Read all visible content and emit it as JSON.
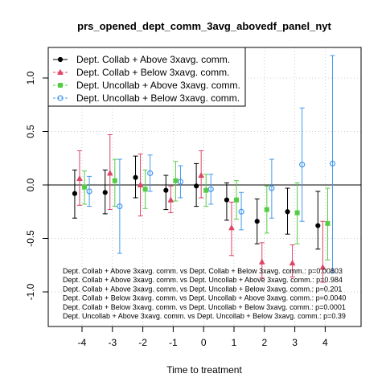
{
  "chart_data": {
    "type": "scatter",
    "title": "prs_opened_dept_comm_3avg_abovedf_panel_nyt",
    "xlabel": "Time to treatment",
    "ylabel": "",
    "x_ticks": [
      -4,
      -3,
      -2,
      -1,
      0,
      1,
      2,
      3,
      4
    ],
    "y_ticks": [
      -1.0,
      -0.5,
      0.0,
      0.5,
      1.0
    ],
    "ylim": [
      -1.34,
      1.3
    ],
    "reference_line_y": 0,
    "grid": "dotted",
    "legend_position": "top-left",
    "series": [
      {
        "name": "Dept. Collab + Above 3xavg. comm.",
        "color": "#000000",
        "marker": "circle-filled",
        "x": [
          -4,
          -3,
          -2,
          -1,
          0,
          1,
          2,
          3,
          4
        ],
        "y": [
          -0.08,
          -0.07,
          0.07,
          -0.05,
          -0.01,
          -0.14,
          -0.34,
          -0.25,
          -0.38
        ],
        "lo": [
          -0.31,
          -0.27,
          -0.12,
          -0.23,
          -0.2,
          -0.33,
          -0.55,
          -0.46,
          -0.6
        ],
        "hi": [
          0.14,
          0.14,
          0.27,
          0.09,
          0.2,
          0.02,
          -0.13,
          -0.03,
          -0.06
        ]
      },
      {
        "name": "Dept. Collab + Below 3xavg. comm.",
        "color": "#dd4466",
        "marker": "triangle-filled",
        "x": [
          -4,
          -3,
          -2,
          -1,
          0,
          1,
          2,
          3,
          4
        ],
        "y": [
          0.06,
          0.11,
          0.0,
          -0.14,
          0.09,
          -0.4,
          -0.72,
          -0.73,
          -0.77
        ],
        "lo": [
          -0.19,
          -0.23,
          -0.29,
          -0.26,
          -0.12,
          -0.66,
          -0.87,
          -0.86,
          -0.91
        ],
        "hi": [
          0.32,
          0.47,
          0.29,
          -0.01,
          0.32,
          -0.16,
          -0.54,
          -0.56,
          -0.34
        ]
      },
      {
        "name": "Dept. Uncollab + Above 3xavg. comm.",
        "color": "#55cc44",
        "marker": "square-filled",
        "x": [
          -4,
          -3,
          -2,
          -1,
          0,
          1,
          2,
          3,
          4
        ],
        "y": [
          -0.02,
          0.04,
          -0.04,
          0.04,
          -0.05,
          -0.14,
          -0.23,
          -0.26,
          -0.36
        ],
        "lo": [
          -0.18,
          -0.2,
          -0.22,
          -0.15,
          -0.2,
          -0.32,
          -0.45,
          -0.55,
          -0.7
        ],
        "hi": [
          0.13,
          0.24,
          0.14,
          0.22,
          0.1,
          0.04,
          -0.01,
          0.02,
          -0.03
        ]
      },
      {
        "name": "Dept. Uncollab + Below 3xavg. comm.",
        "color": "#4499ee",
        "marker": "circle-open",
        "x": [
          -4,
          -3,
          -2,
          -1,
          0,
          1,
          2,
          3,
          4
        ],
        "y": [
          -0.06,
          -0.2,
          0.11,
          0.03,
          -0.04,
          -0.25,
          -0.03,
          0.19,
          0.2
        ],
        "lo": [
          -0.2,
          -0.64,
          -0.06,
          -0.12,
          -0.18,
          -0.42,
          -0.31,
          -0.34,
          -0.82
        ],
        "hi": [
          0.08,
          0.24,
          0.28,
          0.18,
          0.1,
          -0.07,
          0.24,
          0.72,
          1.21
        ]
      }
    ],
    "annotations": [
      "Dept. Collab + Above 3xavg. comm. vs Dept. Collab + Below 3xavg. comm.: p=0.00803",
      "Dept. Collab + Above 3xavg. comm. vs Dept. Uncollab + Above 3xavg. comm.: p=0.984",
      "Dept. Collab + Above 3xavg. comm. vs Dept. Uncollab + Below 3xavg. comm.: p=0.201",
      "Dept. Collab + Below 3xavg. comm. vs Dept. Uncollab + Above 3xavg. comm.: p=0.0040",
      "Dept. Collab + Below 3xavg. comm. vs Dept. Uncollab + Below 3xavg. comm.: p=0.0001",
      "Dept. Uncollab + Above 3xavg. comm. vs Dept. Uncollab + Below 3xavg. comm.: p=0.39"
    ]
  }
}
